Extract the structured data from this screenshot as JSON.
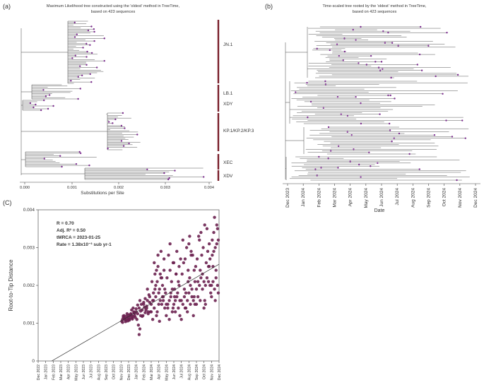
{
  "panels": {
    "a": {
      "label": "(a)",
      "title_line1": "Maximum Likelihood tree constructed using the 'oldest' method in TreeTime,",
      "title_line2": "based on 423 sequences",
      "xlabel": "Substitutions per Site",
      "ticks": [
        "0.000",
        "0.001",
        "0.002",
        "0.003",
        "0.004"
      ],
      "clades": [
        "JN.1",
        "LB.1",
        "XDY",
        "KP.1/KP.2/KP.3",
        "XEC",
        "XDV"
      ]
    },
    "b": {
      "label": "(b)",
      "title_line1": "Time-scaled tree rooted by the 'oldest' method in TreeTime,",
      "title_line2": "based on 423 sequences",
      "xlabel": "Date",
      "ticks": [
        "Dec 2023",
        "Jan 2024",
        "Feb 2024",
        "Mar 2024",
        "Apr 2024",
        "May 2024",
        "Jun 2024",
        "Jul 2024",
        "Aug 2024",
        "Sep 2024",
        "Oct 2024",
        "Nov 2024",
        "Dec 2024"
      ]
    },
    "c": {
      "label": "(C)",
      "stats": {
        "r": "R = 0.70",
        "adj_r2": "Adj. R² = 0.50",
        "tmrca": "tMRCA = 2023-01-25",
        "rate": "Rate =  1.38x10⁻³ sub yr-1"
      }
    }
  },
  "colors": {
    "tip": "#7b2c8e",
    "clade_bar": "#7a1f2b",
    "point": "#6b2150",
    "line": "#333333"
  },
  "chart_data": [
    {
      "type": "scatter",
      "title": "",
      "xlabel": "",
      "ylabel": "Root-to-Tip Distance",
      "xlim": [
        0,
        24
      ],
      "ylim": [
        0,
        0.004
      ],
      "x_tick_labels": [
        "Dec 2022",
        "Jan 2023",
        "Feb 2023",
        "Mar 2023",
        "Apr 2023",
        "May 2023",
        "Jun 2023",
        "Jul 2023",
        "Aug 2023",
        "Sep 2023",
        "Oct 2023",
        "Nov 2023",
        "Dec 2023",
        "Jan 2024",
        "Feb 2024",
        "Mar 2024",
        "Apr 2024",
        "May 2024",
        "Jun 2024",
        "Jul 2024",
        "Aug 2024",
        "Sep 2024",
        "Oct 2024",
        "Nov 2024",
        "Dec 2024"
      ],
      "y_ticks": [
        0,
        0.001,
        0.002,
        0.003,
        0.004
      ],
      "y_tick_labels": [
        "0",
        "0.001",
        "0.002",
        "0.003",
        "0.004"
      ],
      "regression": {
        "x": [
          1.8,
          24
        ],
        "y": [
          0,
          0.00256
        ]
      },
      "points_x": [
        11.1,
        11.2,
        11.3,
        11.4,
        11.5,
        11.6,
        11.7,
        11.8,
        11.9,
        12.0,
        12.1,
        12.2,
        12.3,
        12.4,
        12.5,
        12.6,
        12.7,
        12.8,
        12.9,
        11.2,
        11.5,
        11.8,
        12.1,
        12.4,
        12.7,
        11.3,
        11.6,
        11.9,
        12.2,
        12.5,
        12.8,
        11.4,
        12.0,
        12.6,
        12.3,
        13.0,
        13.2,
        13.4,
        13.6,
        13.8,
        14.0,
        14.2,
        14.4,
        14.6,
        14.8,
        13.1,
        13.5,
        13.9,
        14.3,
        14.7,
        13.3,
        13.7,
        14.1,
        14.5,
        14.9,
        13.0,
        13.4,
        13.8,
        14.2,
        14.6,
        13.2,
        13.6,
        14.0,
        14.4,
        14.8,
        13.5,
        14.5,
        15.0,
        15.2,
        15.4,
        15.6,
        15.8,
        16.0,
        16.2,
        16.4,
        16.6,
        16.8,
        15.1,
        15.5,
        15.9,
        16.3,
        16.7,
        15.3,
        15.7,
        16.1,
        16.5,
        16.9,
        15.0,
        15.4,
        15.8,
        16.2,
        16.6,
        15.2,
        15.6,
        16.0,
        16.4,
        16.8,
        15.3,
        15.9,
        16.5,
        15.7,
        16.1,
        16.7,
        15.5,
        16.3,
        17.0,
        17.2,
        17.4,
        17.6,
        17.8,
        18.0,
        18.2,
        18.4,
        18.6,
        18.8,
        17.1,
        17.5,
        17.9,
        18.3,
        18.7,
        17.3,
        17.7,
        18.1,
        18.5,
        18.9,
        17.0,
        17.4,
        17.8,
        18.2,
        18.6,
        17.2,
        17.6,
        18.0,
        18.4,
        18.8,
        17.5,
        18.1,
        18.7,
        17.9,
        18.3,
        19.0,
        19.2,
        19.4,
        19.6,
        19.8,
        20.0,
        20.2,
        20.4,
        20.6,
        20.8,
        19.1,
        19.5,
        19.9,
        20.3,
        20.7,
        19.3,
        19.7,
        20.1,
        20.5,
        20.9,
        19.0,
        19.4,
        19.8,
        20.2,
        20.6,
        19.2,
        19.6,
        20.0,
        20.4,
        20.8,
        19.5,
        20.1,
        20.7,
        19.9,
        20.3,
        21.0,
        21.2,
        21.4,
        21.6,
        21.8,
        22.0,
        22.2,
        22.4,
        22.6,
        22.8,
        21.1,
        21.5,
        21.9,
        22.3,
        22.7,
        21.3,
        21.7,
        22.1,
        22.5,
        22.9,
        21.0,
        21.4,
        21.8,
        22.2,
        22.6,
        21.2,
        21.6,
        22.0,
        22.4,
        22.8,
        21.5,
        22.1,
        22.7,
        23.0,
        23.2,
        23.4,
        23.6,
        23.8,
        23.1,
        23.5,
        23.9,
        23.3,
        23.7,
        23.0,
        23.4,
        23.8,
        23.2,
        23.6,
        23.9,
        23.1,
        23.5,
        23.3,
        23.7
      ],
      "points_y": [
        0.00105,
        0.0011,
        0.00115,
        0.0012,
        0.0011,
        0.00108,
        0.00118,
        0.00112,
        0.00106,
        0.00122,
        0.0011,
        0.00115,
        0.00125,
        0.0012,
        0.00113,
        0.00118,
        0.00128,
        0.0012,
        0.00115,
        0.00102,
        0.00112,
        0.00125,
        0.00108,
        0.00135,
        0.0013,
        0.00119,
        0.00104,
        0.00116,
        0.00121,
        0.00111,
        0.00126,
        0.00114,
        0.00109,
        0.0014,
        0.00124,
        0.0013,
        0.00125,
        0.0014,
        0.0012,
        0.00135,
        0.0015,
        0.00128,
        0.00145,
        0.0013,
        0.00155,
        0.0011,
        0.0016,
        0.0012,
        0.00135,
        0.00175,
        0.00095,
        0.0015,
        0.00142,
        0.0016,
        0.0013,
        0.00138,
        0.0007,
        0.00118,
        0.00165,
        0.00125,
        0.00148,
        0.00132,
        0.00155,
        0.0014,
        0.0017,
        0.00085,
        0.0019,
        0.0015,
        0.0016,
        0.0014,
        0.0017,
        0.0013,
        0.0018,
        0.0016,
        0.0015,
        0.0017,
        0.0019,
        0.0021,
        0.0023,
        0.0025,
        0.0022,
        0.0024,
        0.0016,
        0.0012,
        0.0019,
        0.002,
        0.0018,
        0.0013,
        0.0026,
        0.0021,
        0.0023,
        0.0016,
        0.0011,
        0.002,
        0.0015,
        0.0022,
        0.0014,
        0.0018,
        0.0028,
        0.0017,
        0.0024,
        0.00105,
        0.0027,
        0.0019,
        0.0029,
        0.0015,
        0.0014,
        0.0016,
        0.0017,
        0.0013,
        0.0015,
        0.0016,
        0.0017,
        0.0014,
        0.0016,
        0.0022,
        0.0024,
        0.0026,
        0.0023,
        0.0025,
        0.0028,
        0.0021,
        0.0019,
        0.0018,
        0.0027,
        0.0012,
        0.0011,
        0.0019,
        0.0013,
        0.0021,
        0.0015,
        0.0018,
        0.0026,
        0.0029,
        0.0012,
        0.0031,
        0.0017,
        0.002,
        0.0014,
        0.0023,
        0.0016,
        0.0015,
        0.0017,
        0.0014,
        0.0016,
        0.0018,
        0.0015,
        0.0017,
        0.0016,
        0.0015,
        0.0023,
        0.0027,
        0.0021,
        0.0029,
        0.0024,
        0.0026,
        0.003,
        0.0022,
        0.0028,
        0.0025,
        0.0011,
        0.0019,
        0.0013,
        0.002,
        0.0012,
        0.0032,
        0.0018,
        0.0031,
        0.0019,
        0.0021,
        0.0014,
        0.0033,
        0.0017,
        0.0024,
        0.0028,
        0.0019,
        0.0021,
        0.002,
        0.0022,
        0.0019,
        0.0021,
        0.002,
        0.0022,
        0.0021,
        0.002,
        0.0027,
        0.0024,
        0.003,
        0.0026,
        0.0031,
        0.0033,
        0.0028,
        0.0016,
        0.0029,
        0.0018,
        0.0015,
        0.0032,
        0.0023,
        0.0015,
        0.0025,
        0.0017,
        0.0034,
        0.0014,
        0.0035,
        0.0027,
        0.0016,
        0.0036,
        0.0025,
        0.002,
        0.0021,
        0.0019,
        0.0022,
        0.002,
        0.0028,
        0.003,
        0.0032,
        0.0034,
        0.0036,
        0.0017,
        0.0038,
        0.0035,
        0.0025,
        0.0024,
        0.0018,
        0.0032,
        0.0016,
        0.0029,
        0.0031
      ]
    }
  ]
}
